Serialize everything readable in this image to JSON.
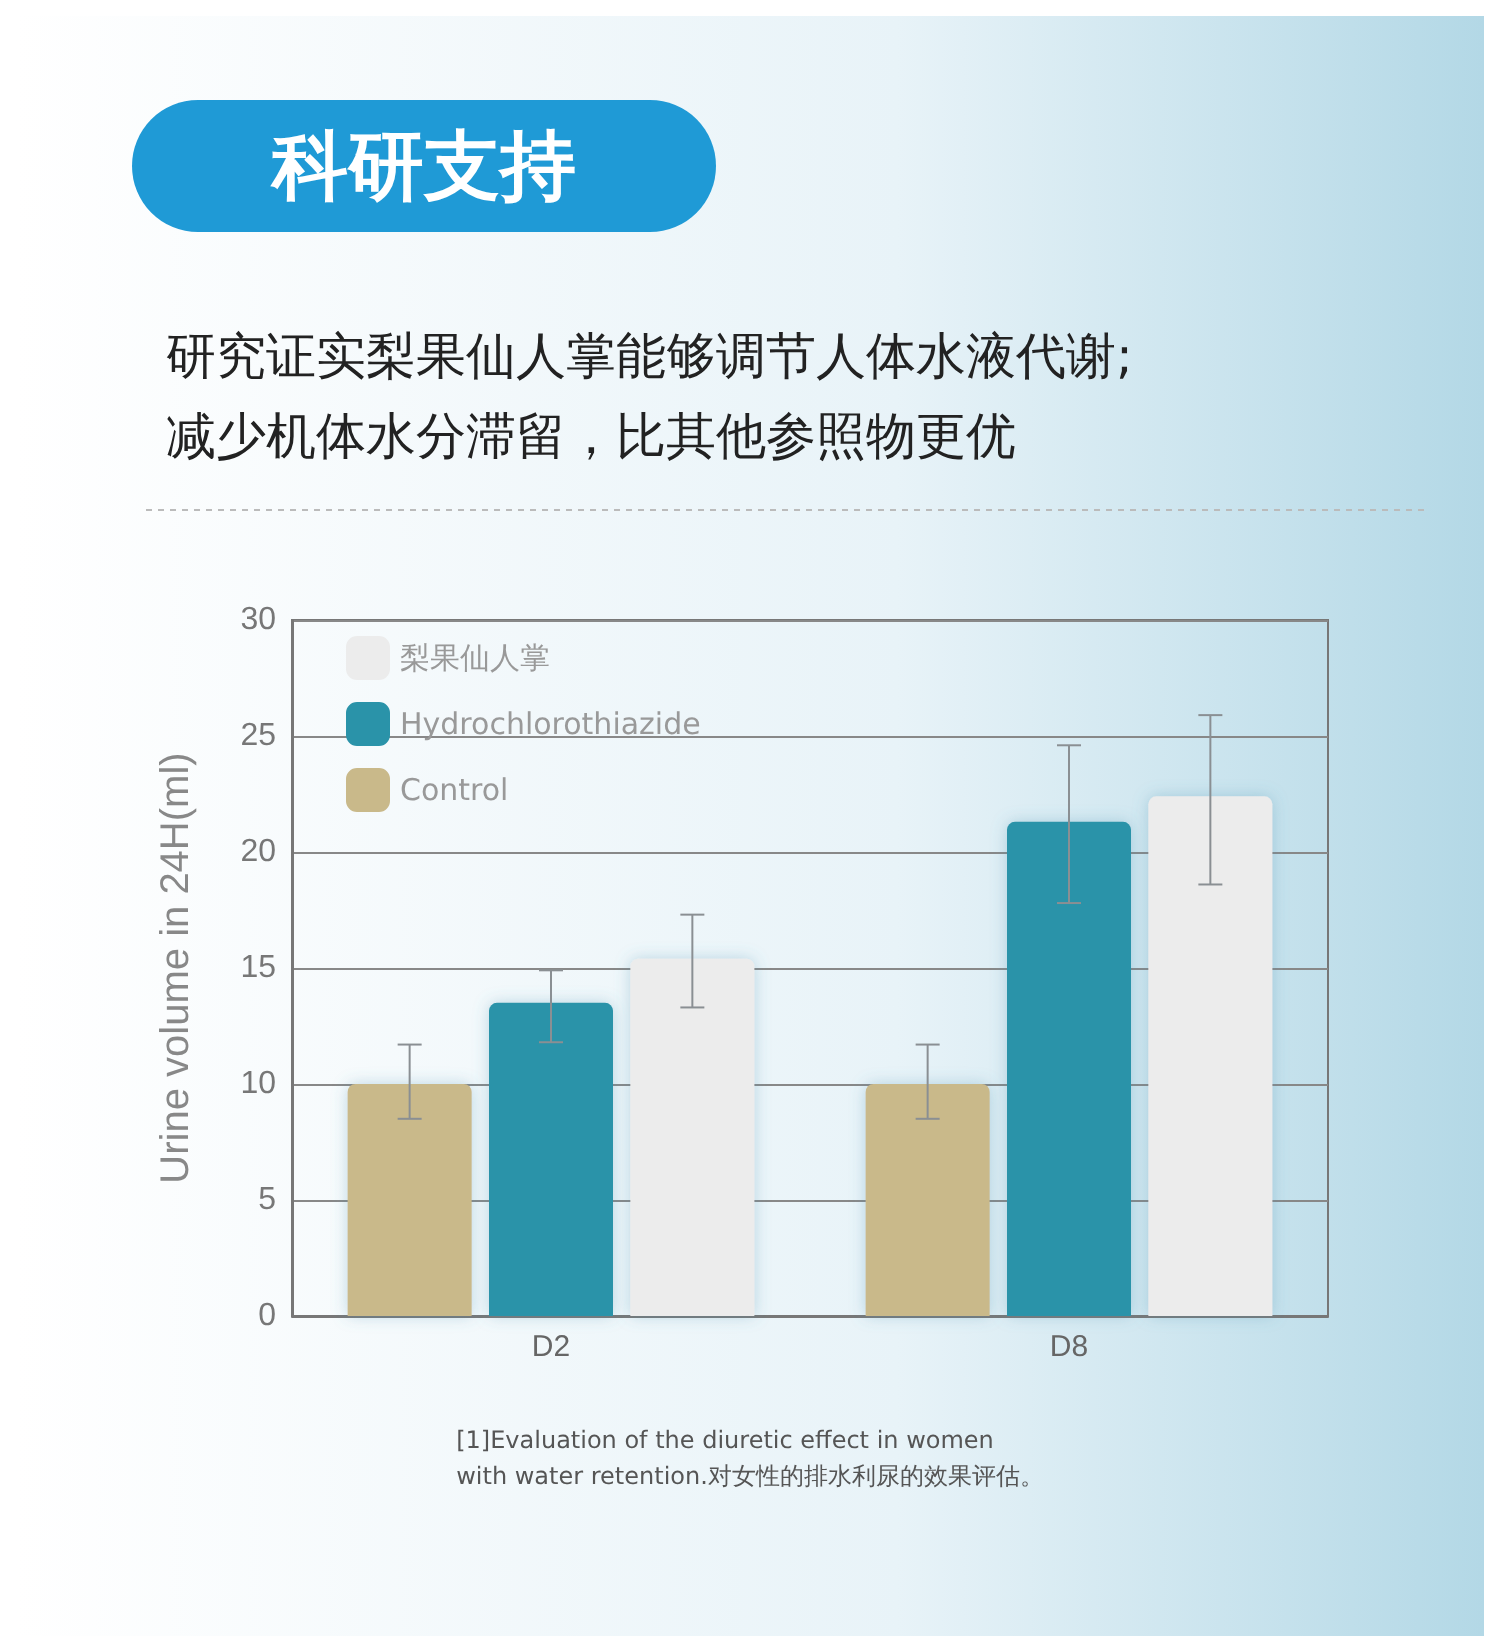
{
  "chart_data": {
    "type": "bar",
    "title": "科研支持",
    "subtitle": "研究证实梨果仙人掌能够调节人体水液代谢;\n减少机体水分滞留，比其他参照物更优",
    "ylabel": "Urine volume in 24H(ml)",
    "categories": [
      "D2",
      "D8"
    ],
    "series": [
      {
        "name": "Control",
        "color": "#c9b98a",
        "values": [
          10,
          10
        ],
        "errors": [
          [
            8.5,
            11.7
          ],
          [
            8.5,
            11.7
          ]
        ]
      },
      {
        "name": "Hydrochlorothiazide",
        "color": "#2a93a9",
        "values": [
          13.5,
          21.3
        ],
        "errors": [
          [
            11.8,
            14.9
          ],
          [
            17.8,
            24.6
          ]
        ]
      },
      {
        "name": "梨果仙人掌",
        "color": "#ececec",
        "values": [
          15.4,
          22.4
        ],
        "errors": [
          [
            13.3,
            17.3
          ],
          [
            18.6,
            25.9
          ]
        ]
      }
    ],
    "ylim": [
      0,
      30
    ],
    "yticks": [
      0,
      5,
      10,
      15,
      20,
      25,
      30
    ],
    "grid": "y",
    "legend": "top left",
    "annotations": [
      "[1]Evaluation of the diuretic effect in women\nwith water retention.对女性的排水利尿的效果评估。"
    ]
  }
}
